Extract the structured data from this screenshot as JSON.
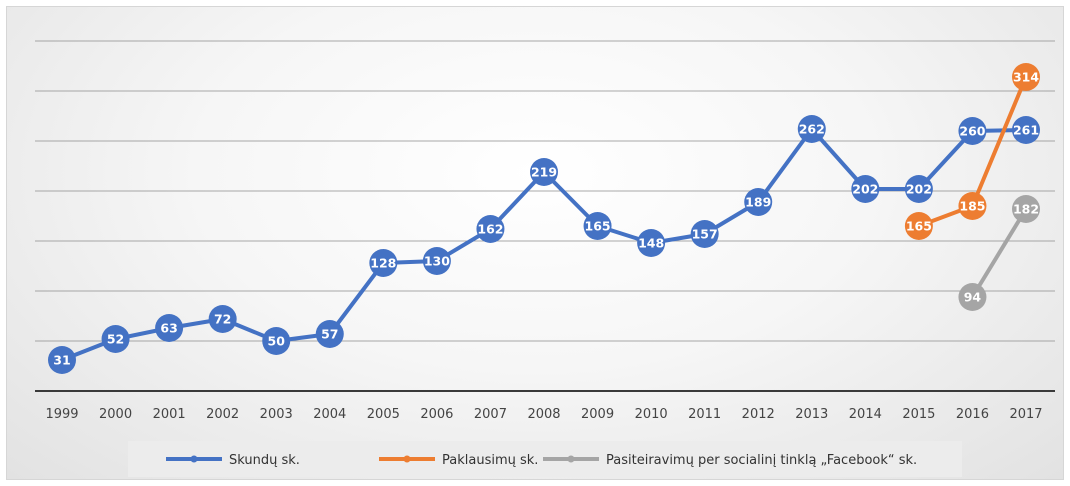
{
  "chart_data": {
    "type": "line",
    "title": "",
    "xlabel": "",
    "ylabel": "",
    "ylim": [
      0,
      350
    ],
    "grid": "horizontal",
    "legend_position": "bottom",
    "categories": [
      "1999",
      "2000",
      "2001",
      "2002",
      "2003",
      "2004",
      "2005",
      "2006",
      "2007",
      "2008",
      "2009",
      "2010",
      "2011",
      "2012",
      "2013",
      "2014",
      "2015",
      "2016",
      "2017"
    ],
    "series": [
      {
        "name": "Skundų sk.",
        "color": "#4472C4",
        "values": [
          31,
          52,
          63,
          72,
          50,
          57,
          128,
          130,
          162,
          219,
          165,
          148,
          157,
          189,
          262,
          202,
          202,
          260,
          261
        ]
      },
      {
        "name": "Paklausimų sk.",
        "color": "#ED7D31",
        "values": [
          null,
          null,
          null,
          null,
          null,
          null,
          null,
          null,
          null,
          null,
          null,
          null,
          null,
          null,
          null,
          null,
          165,
          185,
          314
        ]
      },
      {
        "name": "Pasiteiravimų per socialinį tinklą „Facebook“ sk.",
        "color": "#A5A5A5",
        "values": [
          null,
          null,
          null,
          null,
          null,
          null,
          null,
          null,
          null,
          null,
          null,
          null,
          null,
          null,
          null,
          null,
          null,
          94,
          182
        ]
      }
    ]
  }
}
